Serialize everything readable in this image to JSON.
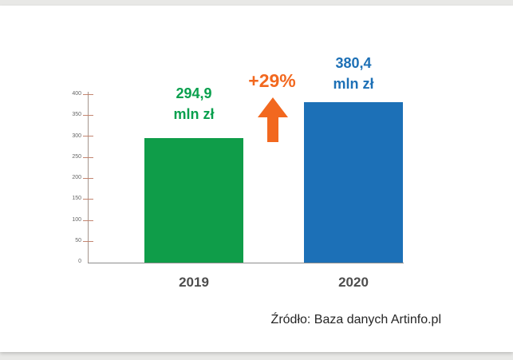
{
  "page": {
    "background_color": "#e8e8e6",
    "card_color": "#ffffff"
  },
  "chart_data": {
    "type": "bar",
    "title": "",
    "categories": [
      "2019",
      "2020"
    ],
    "values": [
      294.9,
      380.4
    ],
    "bar_colors": [
      "#0f9d49",
      "#1c70b7"
    ],
    "value_labels": [
      {
        "value": "294,9",
        "unit": "mln zł",
        "color": "#0aa04e"
      },
      {
        "value": "380,4",
        "unit": "mln zł",
        "color": "#1d70b6"
      }
    ],
    "annotation": {
      "text": "+29%",
      "color": "#f2681f",
      "arrow_icon": "up-arrow-icon"
    },
    "xlabel": "",
    "ylabel": "",
    "ylim": [
      0,
      400
    ],
    "yticks": [
      "400",
      "350",
      "300",
      "250",
      "200",
      "150",
      "100",
      "50",
      "0"
    ],
    "grid": false,
    "legend": null,
    "source": "Źródło: Baza danych Artinfo.pl"
  }
}
